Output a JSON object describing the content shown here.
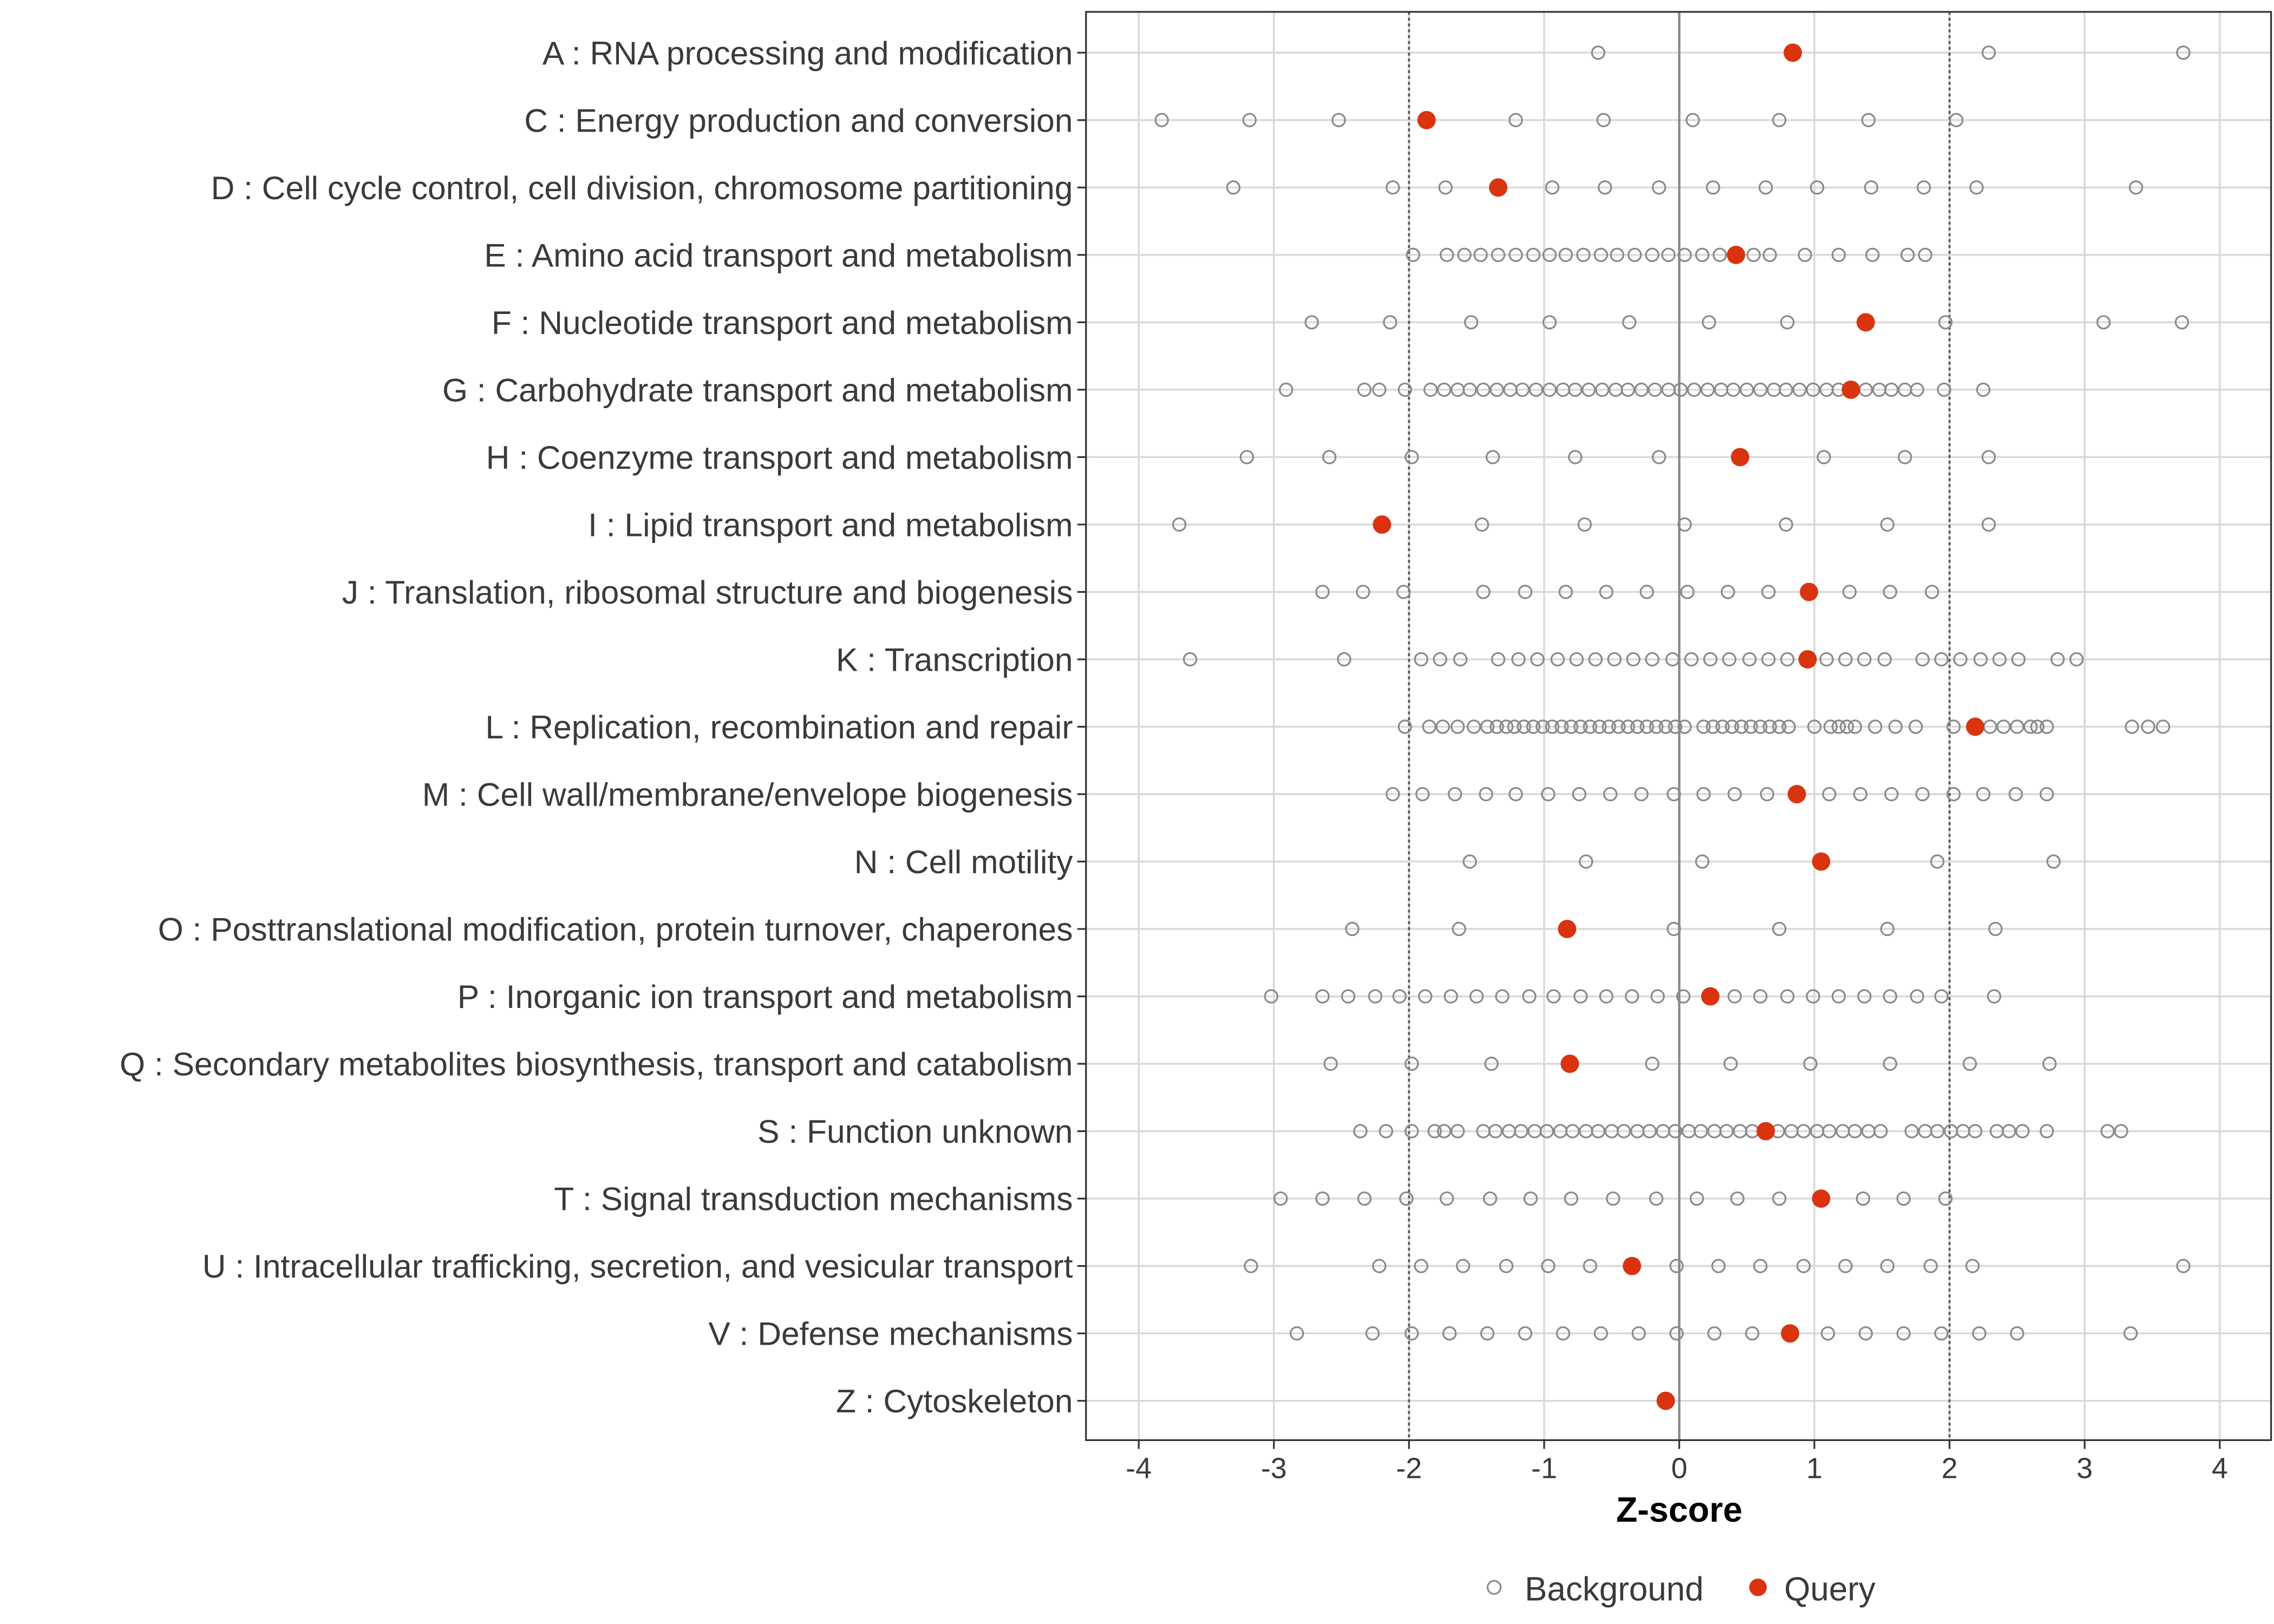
{
  "chart_data": {
    "type": "scatter",
    "title": "",
    "xlabel": "Z-score",
    "ylabel": "",
    "xlim": [
      -4.2,
      4.4
    ],
    "x_ticks": [
      -4,
      -3,
      -2,
      -1,
      0,
      1,
      2,
      3,
      4
    ],
    "reference_lines": {
      "solid": [
        0
      ],
      "dotted": [
        -2,
        2
      ]
    },
    "grid": true,
    "legend": {
      "placement": "bottom",
      "entries": [
        "Background",
        "Query"
      ]
    },
    "colors": {
      "background": "#8a8a8a",
      "query": "#d93310",
      "grid": "#d9d9d9"
    },
    "categories": [
      {
        "label": "A : RNA processing and modification",
        "query": 0.84,
        "background": [
          -0.6,
          2.29,
          3.73
        ]
      },
      {
        "label": "C : Energy production and conversion",
        "query": -1.87,
        "background": [
          -3.83,
          -3.18,
          -2.52,
          -1.21,
          -0.56,
          0.1,
          0.74,
          1.4,
          2.05
        ]
      },
      {
        "label": "D : Cell cycle control, cell division, chromosome partitioning",
        "query": -1.34,
        "background": [
          -3.3,
          -2.12,
          -1.73,
          -0.94,
          -0.55,
          -0.15,
          0.25,
          0.64,
          1.02,
          1.42,
          1.81,
          2.2,
          3.38
        ]
      },
      {
        "label": "E : Amino acid transport and metabolism",
        "query": 0.42,
        "background": [
          -1.97,
          -1.72,
          -1.59,
          -1.47,
          -1.34,
          -1.21,
          -1.08,
          -0.96,
          -0.84,
          -0.71,
          -0.58,
          -0.46,
          -0.33,
          -0.2,
          -0.08,
          0.04,
          0.17,
          0.3,
          0.55,
          0.67,
          0.93,
          1.18,
          1.43,
          1.69,
          1.82
        ]
      },
      {
        "label": "F : Nucleotide transport and metabolism",
        "query": 1.38,
        "background": [
          -2.72,
          -2.14,
          -1.54,
          -0.96,
          -0.37,
          0.22,
          0.8,
          1.97,
          3.14,
          3.72
        ]
      },
      {
        "label": "G : Carbohydrate transport and metabolism",
        "query": 1.27,
        "background": [
          -2.91,
          -2.33,
          -2.22,
          -2.03,
          -1.84,
          -1.74,
          -1.64,
          -1.55,
          -1.45,
          -1.35,
          -1.25,
          -1.16,
          -1.06,
          -0.96,
          -0.86,
          -0.77,
          -0.67,
          -0.57,
          -0.47,
          -0.38,
          -0.28,
          -0.18,
          -0.08,
          0.01,
          0.11,
          0.21,
          0.31,
          0.4,
          0.5,
          0.6,
          0.7,
          0.79,
          0.89,
          0.99,
          1.09,
          1.18,
          1.38,
          1.48,
          1.57,
          1.67,
          1.76,
          1.96,
          2.25
        ]
      },
      {
        "label": "H : Coenzyme transport and metabolism",
        "query": 0.45,
        "background": [
          -3.2,
          -2.59,
          -1.98,
          -1.38,
          -0.77,
          -0.15,
          1.07,
          1.67,
          2.29
        ]
      },
      {
        "label": "I : Lipid transport and metabolism",
        "query": -2.2,
        "background": [
          -3.7,
          -1.46,
          -0.7,
          0.04,
          0.79,
          1.54,
          2.29
        ]
      },
      {
        "label": "J : Translation, ribosomal structure and biogenesis",
        "query": 0.96,
        "background": [
          -2.64,
          -2.34,
          -2.04,
          -1.45,
          -1.14,
          -0.84,
          -0.54,
          -0.24,
          0.06,
          0.36,
          0.66,
          1.26,
          1.56,
          1.87
        ]
      },
      {
        "label": "K : Transcription",
        "query": 0.95,
        "background": [
          -3.62,
          -2.48,
          -1.91,
          -1.77,
          -1.62,
          -1.34,
          -1.19,
          -1.05,
          -0.9,
          -0.76,
          -0.62,
          -0.48,
          -0.34,
          -0.2,
          -0.05,
          0.09,
          0.23,
          0.37,
          0.52,
          0.66,
          0.8,
          1.09,
          1.23,
          1.37,
          1.52,
          1.8,
          1.94,
          2.08,
          2.23,
          2.37,
          2.51,
          2.8,
          2.94
        ]
      },
      {
        "label": "L : Replication, recombination and repair",
        "query": 2.19,
        "background": [
          -2.03,
          -1.85,
          -1.75,
          -1.64,
          -1.52,
          -1.42,
          -1.35,
          -1.28,
          -1.22,
          -1.15,
          -1.08,
          -1.01,
          -0.94,
          -0.87,
          -0.8,
          -0.73,
          -0.66,
          -0.59,
          -0.52,
          -0.45,
          -0.38,
          -0.31,
          -0.24,
          -0.17,
          -0.1,
          -0.03,
          0.04,
          0.18,
          0.25,
          0.32,
          0.39,
          0.46,
          0.53,
          0.6,
          0.67,
          0.74,
          0.81,
          1.0,
          1.12,
          1.18,
          1.24,
          1.3,
          1.45,
          1.6,
          1.75,
          2.03,
          2.3,
          2.4,
          2.5,
          2.6,
          2.65,
          2.72,
          3.35,
          3.47,
          3.58
        ]
      },
      {
        "label": "M : Cell wall/membrane/envelope biogenesis",
        "query": 0.87,
        "background": [
          -2.12,
          -1.9,
          -1.66,
          -1.43,
          -1.21,
          -0.97,
          -0.74,
          -0.51,
          -0.28,
          -0.04,
          0.18,
          0.41,
          0.65,
          1.11,
          1.34,
          1.57,
          1.8,
          2.03,
          2.25,
          2.49,
          2.72
        ]
      },
      {
        "label": "N : Cell motility",
        "query": 1.05,
        "background": [
          -1.55,
          -0.69,
          0.17,
          1.91,
          2.77
        ]
      },
      {
        "label": "O : Posttranslational modification, protein turnover, chaperones",
        "query": -0.83,
        "background": [
          -2.42,
          -1.63,
          -0.04,
          0.74,
          1.54,
          2.34
        ]
      },
      {
        "label": "P : Inorganic ion transport and metabolism",
        "query": 0.23,
        "background": [
          -3.02,
          -2.64,
          -2.45,
          -2.25,
          -2.07,
          -1.88,
          -1.69,
          -1.5,
          -1.31,
          -1.11,
          -0.93,
          -0.73,
          -0.54,
          -0.35,
          -0.16,
          0.03,
          0.41,
          0.6,
          0.8,
          0.99,
          1.18,
          1.37,
          1.56,
          1.76,
          1.94,
          2.33
        ]
      },
      {
        "label": "Q : Secondary metabolites biosynthesis, transport and catabolism",
        "query": -0.81,
        "background": [
          -2.58,
          -1.98,
          -1.39,
          -0.2,
          0.38,
          0.97,
          1.56,
          2.15,
          2.74
        ]
      },
      {
        "label": "S : Function unknown",
        "query": 0.64,
        "background": [
          -2.36,
          -2.17,
          -1.98,
          -1.81,
          -1.74,
          -1.64,
          -1.45,
          -1.36,
          -1.26,
          -1.17,
          -1.07,
          -0.98,
          -0.88,
          -0.79,
          -0.69,
          -0.6,
          -0.5,
          -0.41,
          -0.31,
          -0.22,
          -0.12,
          -0.03,
          0.07,
          0.16,
          0.26,
          0.35,
          0.45,
          0.54,
          0.73,
          0.83,
          0.92,
          1.02,
          1.11,
          1.21,
          1.3,
          1.4,
          1.49,
          1.72,
          1.82,
          1.91,
          2.01,
          2.1,
          2.19,
          2.35,
          2.44,
          2.54,
          2.72,
          3.17,
          3.27
        ]
      },
      {
        "label": "T : Signal transduction mechanisms",
        "query": 1.05,
        "background": [
          -2.95,
          -2.64,
          -2.33,
          -2.02,
          -1.72,
          -1.4,
          -1.1,
          -0.8,
          -0.49,
          -0.17,
          0.13,
          0.43,
          0.74,
          1.36,
          1.66,
          1.97
        ]
      },
      {
        "label": "U : Intracellular trafficking, secretion, and vesicular transport",
        "query": -0.35,
        "background": [
          -3.17,
          -2.22,
          -1.91,
          -1.6,
          -1.28,
          -0.97,
          -0.66,
          -0.02,
          0.29,
          0.6,
          0.92,
          1.23,
          1.54,
          1.86,
          2.17,
          3.73
        ]
      },
      {
        "label": "V : Defense mechanisms",
        "query": 0.82,
        "background": [
          -2.83,
          -2.27,
          -1.98,
          -1.7,
          -1.42,
          -1.14,
          -0.86,
          -0.58,
          -0.3,
          -0.02,
          0.26,
          0.54,
          1.1,
          1.38,
          1.66,
          1.94,
          2.22,
          2.5,
          3.34
        ]
      },
      {
        "label": "Z : Cytoskeleton",
        "query": -0.1,
        "background": []
      }
    ]
  }
}
